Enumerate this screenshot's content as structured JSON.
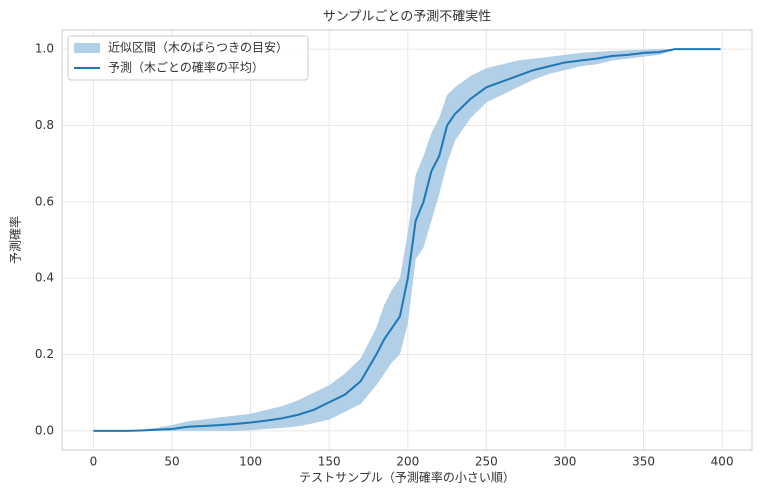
{
  "chart_data": {
    "type": "line",
    "title": "サンプルごとの予測不確実性",
    "xlabel": "テストサンプル（予測確率の小さい順）",
    "ylabel": "予測確率",
    "x": [
      0,
      10,
      20,
      30,
      40,
      50,
      60,
      70,
      80,
      90,
      100,
      110,
      120,
      130,
      140,
      150,
      160,
      170,
      180,
      185,
      190,
      195,
      200,
      205,
      210,
      215,
      220,
      225,
      230,
      240,
      250,
      260,
      270,
      280,
      290,
      300,
      310,
      320,
      330,
      340,
      350,
      360,
      370,
      380,
      390,
      399
    ],
    "series": [
      {
        "name": "近似区間（木のばらつきの目安）",
        "color": "#b1cfe6",
        "lower": [
          0,
          0,
          0,
          0,
          0,
          0,
          0,
          0,
          0,
          0,
          0.002,
          0.005,
          0.008,
          0.012,
          0.02,
          0.03,
          0.05,
          0.07,
          0.12,
          0.15,
          0.18,
          0.2,
          0.28,
          0.45,
          0.48,
          0.55,
          0.62,
          0.7,
          0.76,
          0.82,
          0.86,
          0.88,
          0.9,
          0.92,
          0.935,
          0.945,
          0.955,
          0.96,
          0.97,
          0.975,
          0.98,
          0.985,
          0.998,
          1,
          1,
          1
        ],
        "upper": [
          0,
          0,
          0,
          0.003,
          0.008,
          0.015,
          0.025,
          0.03,
          0.035,
          0.04,
          0.045,
          0.055,
          0.065,
          0.08,
          0.1,
          0.12,
          0.15,
          0.19,
          0.27,
          0.33,
          0.37,
          0.4,
          0.52,
          0.67,
          0.72,
          0.78,
          0.82,
          0.88,
          0.9,
          0.93,
          0.95,
          0.96,
          0.97,
          0.975,
          0.98,
          0.985,
          0.99,
          0.993,
          0.995,
          0.997,
          0.998,
          1,
          1,
          1,
          1,
          1
        ]
      },
      {
        "name": "予測（木ごとの確率の平均）",
        "color": "#1f77b4",
        "values": [
          0,
          0,
          0,
          0.001,
          0.003,
          0.005,
          0.011,
          0.013,
          0.015,
          0.018,
          0.022,
          0.027,
          0.033,
          0.042,
          0.055,
          0.075,
          0.095,
          0.13,
          0.2,
          0.24,
          0.27,
          0.3,
          0.4,
          0.55,
          0.6,
          0.68,
          0.72,
          0.8,
          0.83,
          0.87,
          0.9,
          0.915,
          0.93,
          0.945,
          0.955,
          0.965,
          0.97,
          0.975,
          0.982,
          0.985,
          0.99,
          0.992,
          1,
          1,
          1,
          1
        ]
      }
    ],
    "xlim": [
      -20,
      419
    ],
    "xticks": [
      0,
      50,
      100,
      150,
      200,
      250,
      300,
      350,
      400
    ],
    "ylim": [
      -0.05,
      1.05
    ],
    "yticks": [
      {
        "value": 0,
        "label": "0.0"
      },
      0.2,
      0.4,
      0.6,
      0.8,
      {
        "value": 1,
        "label": "1.0"
      }
    ],
    "grid": true,
    "legend": "upper left"
  }
}
